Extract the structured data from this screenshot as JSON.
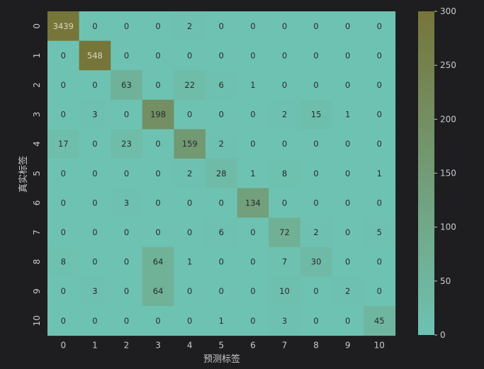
{
  "chart_data": {
    "type": "heatmap",
    "title": "",
    "xlabel": "预测标签",
    "ylabel": "真实标签",
    "x_categories": [
      "0",
      "1",
      "2",
      "3",
      "4",
      "5",
      "6",
      "7",
      "8",
      "9",
      "10"
    ],
    "y_categories": [
      "0",
      "1",
      "2",
      "3",
      "4",
      "5",
      "6",
      "7",
      "8",
      "9",
      "10"
    ],
    "values": [
      [
        3439,
        0,
        0,
        0,
        2,
        0,
        0,
        0,
        0,
        0,
        0
      ],
      [
        0,
        548,
        0,
        0,
        0,
        0,
        0,
        0,
        0,
        0,
        0
      ],
      [
        0,
        0,
        63,
        0,
        22,
        6,
        1,
        0,
        0,
        0,
        0
      ],
      [
        0,
        3,
        0,
        198,
        0,
        0,
        0,
        2,
        15,
        1,
        0
      ],
      [
        17,
        0,
        23,
        0,
        159,
        2,
        0,
        0,
        0,
        0,
        0
      ],
      [
        0,
        0,
        0,
        0,
        2,
        28,
        1,
        8,
        0,
        0,
        1
      ],
      [
        0,
        0,
        3,
        0,
        0,
        0,
        134,
        0,
        0,
        0,
        0
      ],
      [
        0,
        0,
        0,
        0,
        0,
        6,
        0,
        72,
        2,
        0,
        5
      ],
      [
        8,
        0,
        0,
        64,
        1,
        0,
        0,
        7,
        30,
        0,
        0
      ],
      [
        0,
        3,
        0,
        64,
        0,
        0,
        0,
        10,
        0,
        2,
        0
      ],
      [
        0,
        0,
        0,
        0,
        0,
        1,
        0,
        3,
        0,
        0,
        45
      ]
    ],
    "vmin": 0,
    "vmax": 300,
    "colorbar_ticks": [
      "0",
      "50",
      "100",
      "150",
      "200",
      "250",
      "300"
    ],
    "colormap": {
      "low": "#6ec2b2",
      "high": "#76753a"
    },
    "grid": false,
    "legend": "colorbar-right"
  }
}
